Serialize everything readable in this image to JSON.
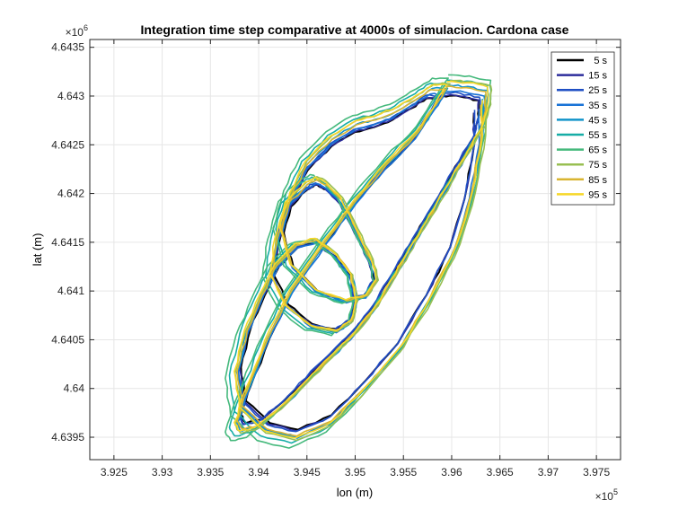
{
  "chart_data": {
    "type": "line",
    "title": "Integration time step comparative at 4000s of simulacion. Cardona case",
    "xlabel": "lon (m)",
    "ylabel": "lat (m)",
    "x_exponent": "×10",
    "x_exponent_power": "5",
    "y_exponent": "×10",
    "y_exponent_power": "6",
    "xlim": [
      392250,
      397750
    ],
    "ylim": [
      4639270,
      4643580
    ],
    "xticks": [
      392500,
      393000,
      393500,
      394000,
      394500,
      395000,
      395500,
      396000,
      396500,
      397000,
      397500
    ],
    "xtick_labels": [
      "3.925",
      "3.93",
      "3.935",
      "3.94",
      "3.945",
      "3.95",
      "3.955",
      "3.96",
      "3.965",
      "3.97",
      "3.975"
    ],
    "yticks": [
      4639500,
      4640000,
      4640500,
      4641000,
      4641500,
      4642000,
      4642500,
      4643000,
      4643500
    ],
    "ytick_labels": [
      "4.6395",
      "4.64",
      "4.6405",
      "4.641",
      "4.6415",
      "4.642",
      "4.6425",
      "4.643",
      "4.6435"
    ],
    "grid": true,
    "legend_position": "top-right",
    "series": [
      {
        "name": "5 s",
        "color": "#000000",
        "scale": 0.985,
        "dx": 0,
        "dy": 0
      },
      {
        "name": "15 s",
        "color": "#2c2c9c",
        "scale": 0.99,
        "dx": -8,
        "dy": -5
      },
      {
        "name": "25 s",
        "color": "#1f4fc4",
        "scale": 1.0,
        "dx": -12,
        "dy": 8
      },
      {
        "name": "35 s",
        "color": "#1872d6",
        "scale": 1.02,
        "dx": 10,
        "dy": -12
      },
      {
        "name": "45 s",
        "color": "#1294ca",
        "scale": 1.04,
        "dx": 20,
        "dy": 14
      },
      {
        "name": "55 s",
        "color": "#16ada6",
        "scale": 1.07,
        "dx": -22,
        "dy": 20
      },
      {
        "name": "65 s",
        "color": "#45b97c",
        "scale": 1.1,
        "dx": -30,
        "dy": 24
      },
      {
        "name": "75 s",
        "color": "#98bf52",
        "scale": 1.06,
        "dx": 25,
        "dy": 30
      },
      {
        "name": "85 s",
        "color": "#d9b532",
        "scale": 1.03,
        "dx": 12,
        "dy": 18
      },
      {
        "name": "95 s",
        "color": "#f6d72a",
        "scale": 1.05,
        "dx": 5,
        "dy": 35
      }
    ],
    "base_path": {
      "x": [
        395900,
        396100,
        396300,
        396300,
        396250,
        396100,
        395950,
        395800,
        395650,
        395500,
        395350,
        395200,
        395000,
        394750,
        394500,
        394250,
        394000,
        393850,
        393800,
        393900,
        394100,
        394350,
        394700,
        395000,
        395300,
        395600,
        395800,
        395900,
        395750,
        395600,
        395400,
        395200,
        395000,
        394750,
        394500,
        394350,
        394250,
        394350,
        394600,
        394900,
        395100,
        395200,
        395150,
        395000,
        394850,
        394700,
        394600,
        394500,
        394300,
        394200,
        394150,
        394300,
        394550,
        394800,
        394950,
        395000,
        394950,
        394800,
        394600,
        394400,
        394200,
        394050,
        393900,
        393800,
        393850,
        394100,
        394400,
        394750,
        395100,
        395450,
        395750,
        396000,
        396150,
        396250,
        396250
      ],
      "y": [
        4643030,
        4643020,
        4642980,
        4642800,
        4642600,
        4642350,
        4642100,
        4641850,
        4641600,
        4641350,
        4641100,
        4640850,
        4640600,
        4640350,
        4640100,
        4639850,
        4639650,
        4639620,
        4639700,
        4640000,
        4640500,
        4641000,
        4641500,
        4641900,
        4642250,
        4642550,
        4642850,
        4643000,
        4643000,
        4642900,
        4642780,
        4642700,
        4642650,
        4642500,
        4642250,
        4641950,
        4641600,
        4641250,
        4641000,
        4640900,
        4640950,
        4641100,
        4641300,
        4641600,
        4641900,
        4642050,
        4642100,
        4642050,
        4641850,
        4641500,
        4641150,
        4640850,
        4640650,
        4640600,
        4640700,
        4640900,
        4641150,
        4641350,
        4641500,
        4641450,
        4641250,
        4640950,
        4640600,
        4640200,
        4639850,
        4639620,
        4639550,
        4639700,
        4640050,
        4640450,
        4640950,
        4641450,
        4641950,
        4642500,
        4642850
      ]
    }
  }
}
